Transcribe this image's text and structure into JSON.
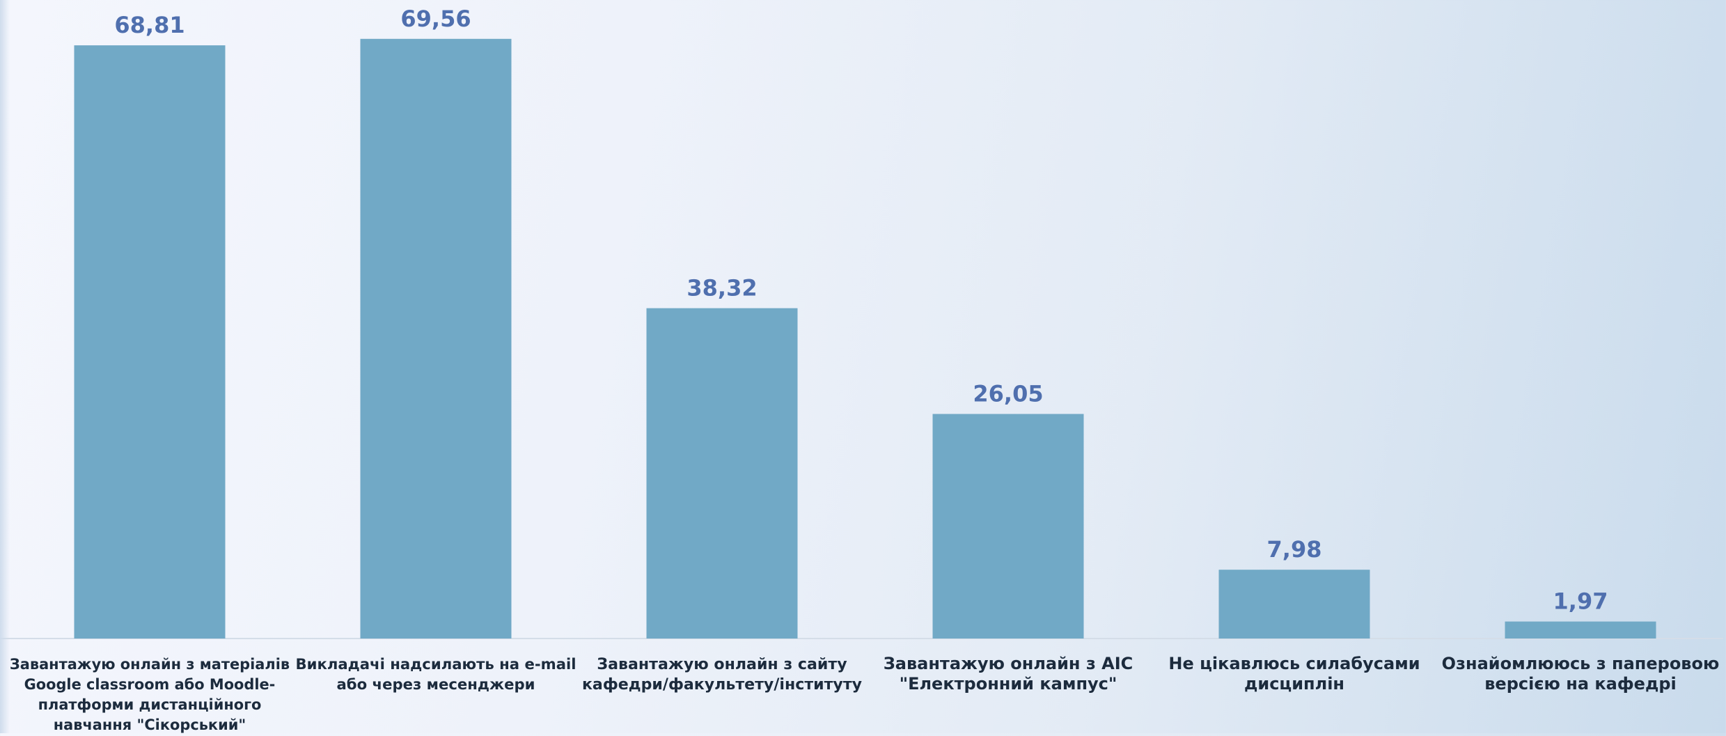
{
  "chart_data": {
    "type": "bar",
    "categories": [
      "Завантажую онлайн з матеріалів Google classroom або Moodle-платформи дистанційного навчання \"Сікорський\"",
      "Викладачі надсилають на e-mail або через месенджери",
      "Завантажую онлайн з сайту кафедри/факультету/інституту",
      "Завантажую онлайн з АІС \"Електронний кампус\"",
      "Не цікавлюсь силабусами дисциплін",
      "Ознайомлююсь з паперовою версією на кафедрі"
    ],
    "category_lines": [
      [
        "Завантажую онлайн з матеріалів",
        "Google classroom або Moodle-",
        "платформи дистанційного",
        "навчання \"Сікорський\""
      ],
      [
        "Викладачі надсилають на e-mail",
        "або через месенджери"
      ],
      [
        "Завантажую онлайн з сайту",
        "кафедри/факультету/інституту"
      ],
      [
        "Завантажую онлайн з АІС",
        "\"Електронний кампус\""
      ],
      [
        "Не цікавлюсь силабусами",
        "дисциплін"
      ],
      [
        "Ознайомлююсь з паперовою",
        "версією на кафедрі"
      ]
    ],
    "values": [
      68.81,
      69.56,
      38.32,
      26.05,
      7.98,
      1.97
    ],
    "value_labels": [
      "68,81",
      "69,56",
      "38,32",
      "26,05",
      "7,98",
      "1,97"
    ],
    "ylim": [
      0,
      72
    ],
    "grid": false,
    "legend": "none",
    "bar_color": "#71a9c6",
    "label_color": "#4f6fae",
    "category_color": "#1c2b3d"
  }
}
